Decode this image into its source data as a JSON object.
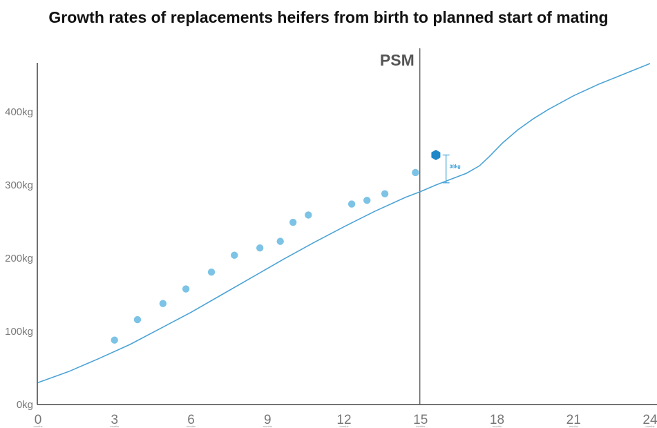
{
  "chart_data": {
    "type": "line",
    "title": "Growth rates of replacements heifers from birth to planned start of mating",
    "xlabel": "",
    "ylabel": "",
    "xlim": [
      0,
      24
    ],
    "ylim": [
      0,
      450
    ],
    "x_ticks": [
      {
        "value": 0,
        "label": "0",
        "sub": "months"
      },
      {
        "value": 3,
        "label": "3",
        "sub": "months"
      },
      {
        "value": 6,
        "label": "6",
        "sub": "months"
      },
      {
        "value": 9,
        "label": "9",
        "sub": "months"
      },
      {
        "value": 12,
        "label": "12",
        "sub": "months"
      },
      {
        "value": 15,
        "label": "15",
        "sub": "months"
      },
      {
        "value": 18,
        "label": "18",
        "sub": "months"
      },
      {
        "value": 21,
        "label": "21",
        "sub": "months"
      },
      {
        "value": 24,
        "label": "24",
        "sub": "months"
      }
    ],
    "y_ticks": [
      {
        "value": 0,
        "label": "0kg"
      },
      {
        "value": 100,
        "label": "100kg"
      },
      {
        "value": 200,
        "label": "200kg"
      },
      {
        "value": 300,
        "label": "300kg"
      },
      {
        "value": 400,
        "label": "400kg"
      }
    ],
    "grid": false,
    "series": [
      {
        "type": "line",
        "color": "#4ba3d6",
        "points": [
          [
            0,
            30
          ],
          [
            1.2,
            45
          ],
          [
            2.4,
            63
          ],
          [
            3.6,
            82
          ],
          [
            4.8,
            104
          ],
          [
            6,
            126
          ],
          [
            7.2,
            150
          ],
          [
            8.4,
            174
          ],
          [
            9.6,
            198
          ],
          [
            10.8,
            221
          ],
          [
            12,
            243
          ],
          [
            13.2,
            264
          ],
          [
            14.4,
            283
          ],
          [
            15,
            291
          ],
          [
            15.6,
            300
          ],
          [
            16.2,
            308
          ],
          [
            16.8,
            316
          ],
          [
            17.3,
            326
          ],
          [
            17.7,
            339
          ],
          [
            18.2,
            357
          ],
          [
            18.8,
            375
          ],
          [
            19.4,
            390
          ],
          [
            20,
            403
          ],
          [
            21,
            422
          ],
          [
            22,
            438
          ],
          [
            23,
            452
          ],
          [
            24,
            466
          ]
        ]
      },
      {
        "type": "scatter",
        "color": "#7cc3e6",
        "points": [
          [
            3,
            88
          ],
          [
            3.9,
            116
          ],
          [
            4.9,
            138
          ],
          [
            5.8,
            158
          ],
          [
            6.8,
            181
          ],
          [
            7.7,
            204
          ],
          [
            8.7,
            214
          ],
          [
            9.5,
            223
          ],
          [
            10,
            249
          ],
          [
            10.6,
            259
          ],
          [
            12.3,
            274
          ],
          [
            12.9,
            279
          ],
          [
            13.6,
            288
          ],
          [
            14.8,
            317
          ]
        ]
      }
    ],
    "highlight_point": {
      "x": 15.6,
      "y": 341,
      "color": "#1e88c8"
    },
    "reference_line": {
      "x": 15,
      "label": "PSM"
    },
    "annotation": {
      "text": "38kg",
      "x": 16,
      "y_top": 341,
      "y_bottom": 303
    }
  }
}
